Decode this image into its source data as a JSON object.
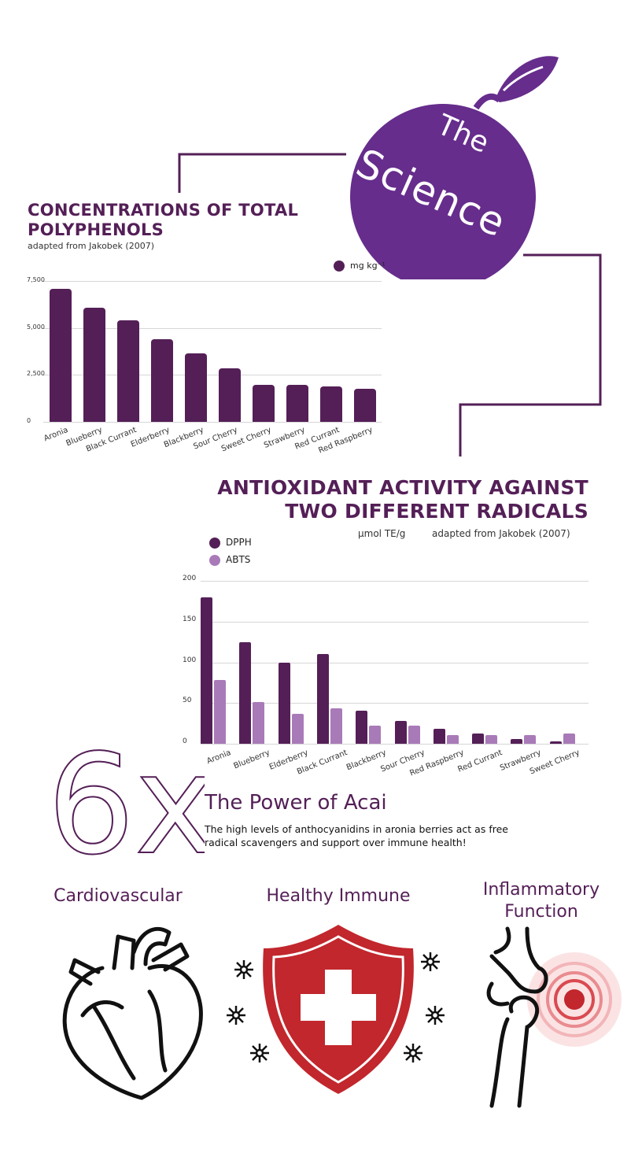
{
  "hero": {
    "title_line1": "The",
    "title_line2": "Science"
  },
  "colors": {
    "circle": "#662d8c",
    "dark": "#541f57",
    "light": "#a97ab8",
    "red": "#c1272d"
  },
  "chart_data": [
    {
      "type": "bar",
      "title": "CONCENTRATIONS OF TOTAL POLYPHENOLS",
      "subtitle": "adapted from Jakobek (2007)",
      "legend": "mg kg⁻¹",
      "legend_placement": "top-right",
      "categories": [
        "Aronia",
        "Blueberry",
        "Black Currant",
        "Elderberry",
        "Blackberry",
        "Sour Cherry",
        "Sweet Cherry",
        "Strawberry",
        "Red Currant",
        "Red Raspberry"
      ],
      "values": [
        7100,
        6080,
        5400,
        4400,
        3650,
        2850,
        1980,
        1980,
        1900,
        1760
      ],
      "yticks": [
        "0",
        "2,500",
        "5,000",
        "7,500"
      ],
      "ylim": [
        0,
        7500
      ],
      "grid": true
    },
    {
      "type": "bar",
      "title_line1": "ANTIOXIDANT ACTIVITY AGAINST",
      "title_line2": "TWO DIFFERENT RADICALS",
      "unit": "µmol TE/g",
      "source": "adapted from Jakobek (2007)",
      "legend_placement": "top-left",
      "categories": [
        "Aronia",
        "Blueberry",
        "Elderberry",
        "Black Currant",
        "Blackberry",
        "Sour Cherry",
        "Red Raspberry",
        "Red Currant",
        "Strawberry",
        "Sweet Cherry"
      ],
      "series": [
        {
          "name": "DPPH",
          "values": [
            180,
            125,
            100,
            110,
            41,
            28,
            18,
            13,
            6,
            3
          ]
        },
        {
          "name": "ABTS",
          "values": [
            78,
            51,
            37,
            43,
            22,
            22,
            11,
            11,
            11,
            13
          ]
        }
      ],
      "yticks": [
        "0",
        "50",
        "100",
        "150",
        "200"
      ],
      "ylim": [
        0,
        200
      ],
      "grid": true
    }
  ],
  "power": {
    "big": "6x",
    "title": "The Power of Acai",
    "body_line1": "The high levels of anthocyanidins in aronia berries act as free",
    "body_line2": "radical scavengers and support over immune health!"
  },
  "benefits": [
    {
      "title": "Cardiovascular",
      "icon": "heart-icon"
    },
    {
      "title": "Healthy Immune",
      "icon": "shield-cross-icon"
    },
    {
      "title_line1": "Inflammatory",
      "title_line2": "Function",
      "icon": "knee-joint-icon"
    }
  ]
}
